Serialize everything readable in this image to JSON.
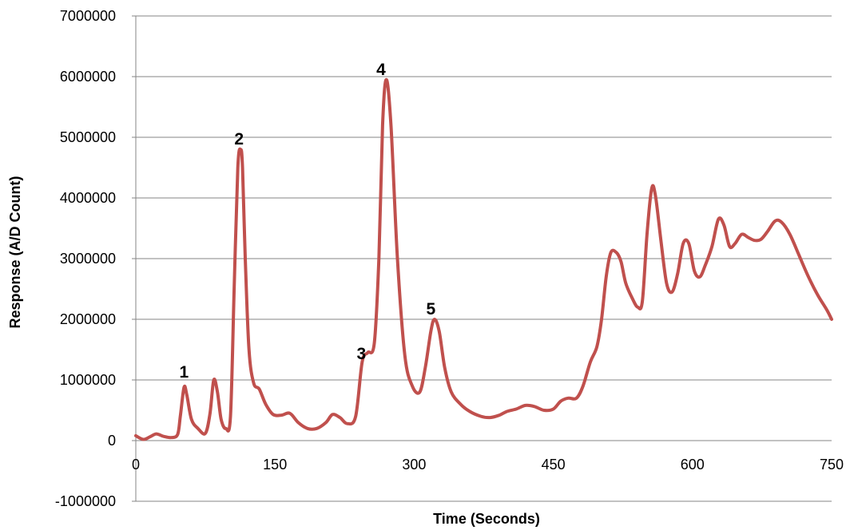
{
  "chart_data": {
    "type": "line",
    "title": "",
    "xlabel": "Time (Seconds)",
    "ylabel": "Response  (A/D Count)",
    "xlim": [
      0,
      750
    ],
    "ylim": [
      -1000000,
      7000000
    ],
    "x_ticks": [
      0,
      150,
      300,
      450,
      600,
      750
    ],
    "x_tick_labels": [
      "0",
      "150",
      "300",
      "450",
      "600",
      "750"
    ],
    "y_ticks": [
      -1000000,
      0,
      1000000,
      2000000,
      3000000,
      4000000,
      5000000,
      6000000,
      7000000
    ],
    "y_tick_labels": [
      "-1000000",
      "0",
      "1000000",
      "2000000",
      "3000000",
      "4000000",
      "5000000",
      "6000000",
      "7000000"
    ],
    "grid": "horizontal",
    "legend": "none",
    "series": [
      {
        "color": "#c0504d",
        "x": [
          0,
          8,
          15,
          22,
          30,
          38,
          45,
          48,
          52,
          55,
          60,
          67,
          75,
          80,
          84,
          88,
          92,
          97,
          102,
          106,
          110,
          113,
          115,
          118,
          122,
          127,
          133,
          140,
          148,
          157,
          166,
          175,
          185,
          195,
          205,
          212,
          220,
          228,
          237,
          244,
          250,
          257,
          262,
          266,
          270,
          275,
          282,
          290,
          298,
          306,
          312,
          318,
          322,
          327,
          333,
          340,
          350,
          360,
          372,
          382,
          392,
          400,
          410,
          420,
          430,
          440,
          450,
          458,
          466,
          475,
          482,
          490,
          497,
          502,
          507,
          512,
          518,
          523,
          528,
          535,
          541,
          546,
          551,
          556,
          560,
          566,
          572,
          578,
          584,
          590,
          596,
          602,
          608,
          614,
          621,
          628,
          634,
          640,
          646,
          653,
          660,
          667,
          674,
          681,
          689,
          696,
          705,
          715,
          725,
          735,
          745,
          750
        ],
        "y": [
          80000,
          20000,
          60000,
          110000,
          70000,
          50000,
          100000,
          400000,
          880000,
          750000,
          350000,
          200000,
          120000,
          450000,
          1000000,
          800000,
          350000,
          200000,
          400000,
          2500000,
          4500000,
          4800000,
          4500000,
          3000000,
          1500000,
          950000,
          850000,
          600000,
          430000,
          420000,
          450000,
          300000,
          200000,
          200000,
          300000,
          430000,
          380000,
          280000,
          400000,
          1300000,
          1450000,
          1600000,
          3000000,
          5200000,
          5950000,
          5200000,
          3000000,
          1400000,
          900000,
          800000,
          1200000,
          1800000,
          2000000,
          1800000,
          1200000,
          800000,
          600000,
          480000,
          400000,
          380000,
          420000,
          480000,
          520000,
          580000,
          560000,
          500000,
          520000,
          650000,
          700000,
          700000,
          900000,
          1300000,
          1550000,
          2000000,
          2700000,
          3100000,
          3100000,
          2950000,
          2600000,
          2350000,
          2200000,
          2300000,
          3400000,
          4150000,
          4050000,
          3300000,
          2600000,
          2450000,
          2750000,
          3250000,
          3250000,
          2800000,
          2700000,
          2900000,
          3200000,
          3650000,
          3550000,
          3200000,
          3250000,
          3400000,
          3350000,
          3300000,
          3320000,
          3450000,
          3620000,
          3600000,
          3400000,
          3050000,
          2700000,
          2400000,
          2150000,
          2000000
        ]
      }
    ],
    "annotations": [
      {
        "text": "1",
        "x": 52,
        "y": 880000
      },
      {
        "text": "2",
        "x": 113,
        "y": 4800000
      },
      {
        "text": "3",
        "x": 250,
        "y": 1450000
      },
      {
        "text": "4",
        "x": 266,
        "y": 5950000
      },
      {
        "text": "5",
        "x": 318,
        "y": 2000000
      }
    ]
  }
}
